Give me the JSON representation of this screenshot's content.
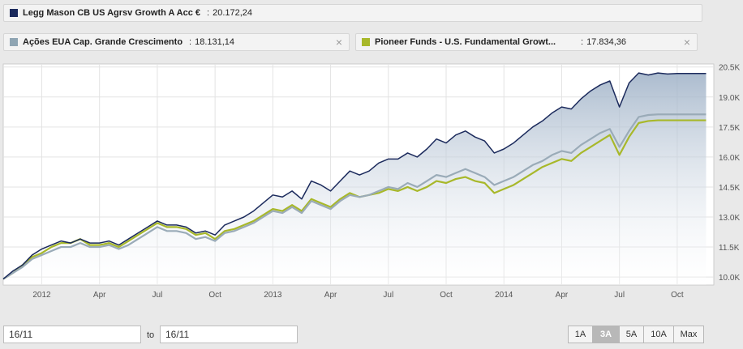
{
  "legend": [
    {
      "name": "Legg Mason CB US Agrsv Growth A Acc €",
      "value": "20.172,24",
      "color": "#1b2a5c",
      "closable": false
    },
    {
      "name": "Ações EUA Cap. Grande Crescimento",
      "value": "18.131,14",
      "color": "#8fa5b3",
      "closable": true
    },
    {
      "name": "Pioneer Funds - U.S. Fundamental Growt...",
      "value": "17.834,36",
      "color": "#a8b82a",
      "closable": true
    }
  ],
  "close_icon": "×",
  "separator": ":",
  "date_from": "16/11",
  "date_to": "16/11",
  "to_label": "to",
  "range_buttons": [
    "1A",
    "3A",
    "5A",
    "10A",
    "Max"
  ],
  "range_active": "3A",
  "chart_data": {
    "type": "line",
    "x_ticks": [
      {
        "label": "2012",
        "m": 2
      },
      {
        "label": "Apr",
        "m": 5
      },
      {
        "label": "Jul",
        "m": 8
      },
      {
        "label": "Oct",
        "m": 11
      },
      {
        "label": "2013",
        "m": 14
      },
      {
        "label": "Apr",
        "m": 17
      },
      {
        "label": "Jul",
        "m": 20
      },
      {
        "label": "Oct",
        "m": 23
      },
      {
        "label": "2014",
        "m": 26
      },
      {
        "label": "Apr",
        "m": 29
      },
      {
        "label": "Jul",
        "m": 32
      },
      {
        "label": "Oct",
        "m": 35
      }
    ],
    "x_range": [
      0,
      36.9
    ],
    "y_ticks": [
      "10.0K",
      "11.5K",
      "13.0K",
      "14.5K",
      "16.0K",
      "17.5K",
      "19.0K",
      "20.5K"
    ],
    "y_tick_values": [
      10000,
      11500,
      13000,
      14500,
      16000,
      17500,
      19000,
      20500
    ],
    "ylim": [
      9600,
      20650
    ],
    "series": [
      {
        "name": "Legg Mason CB US Agrsv Growth A Acc €",
        "color": "#1b2a5c",
        "fill": true,
        "x": [
          0,
          0.5,
          1,
          1.5,
          2,
          2.5,
          3,
          3.5,
          4,
          4.5,
          5,
          5.5,
          6,
          6.5,
          7,
          7.5,
          8,
          8.5,
          9,
          9.5,
          10,
          10.5,
          11,
          11.5,
          12,
          12.5,
          13,
          13.5,
          14,
          14.5,
          15,
          15.5,
          16,
          16.5,
          17,
          17.5,
          18,
          18.5,
          19,
          19.5,
          20,
          20.5,
          21,
          21.5,
          22,
          22.5,
          23,
          23.5,
          24,
          24.5,
          25,
          25.5,
          26,
          26.5,
          27,
          27.5,
          28,
          28.5,
          29,
          29.5,
          30,
          30.5,
          31,
          31.5,
          32,
          32.5,
          33,
          33.5,
          34,
          34.5,
          35,
          35.5,
          36,
          36.5
        ],
        "values": [
          9900,
          10300,
          10600,
          11100,
          11400,
          11600,
          11800,
          11700,
          11900,
          11700,
          11700,
          11800,
          11600,
          11900,
          12200,
          12500,
          12800,
          12600,
          12600,
          12500,
          12200,
          12300,
          12100,
          12600,
          12800,
          13000,
          13300,
          13700,
          14100,
          14000,
          14300,
          13900,
          14800,
          14600,
          14300,
          14800,
          15300,
          15100,
          15300,
          15700,
          15900,
          15900,
          16200,
          16000,
          16400,
          16900,
          16700,
          17100,
          17300,
          17000,
          16800,
          16200,
          16400,
          16700,
          17100,
          17500,
          17800,
          18200,
          18500,
          18400,
          18900,
          19300,
          19600,
          19800,
          18500,
          19700,
          20200,
          20100,
          20200,
          20150,
          20172,
          20172,
          20172,
          20172
        ]
      },
      {
        "name": "Ações EUA Cap. Grande Crescimento",
        "color": "#9aabb8",
        "fill": false,
        "x": [
          0,
          0.5,
          1,
          1.5,
          2,
          2.5,
          3,
          3.5,
          4,
          4.5,
          5,
          5.5,
          6,
          6.5,
          7,
          7.5,
          8,
          8.5,
          9,
          9.5,
          10,
          10.5,
          11,
          11.5,
          12,
          12.5,
          13,
          13.5,
          14,
          14.5,
          15,
          15.5,
          16,
          16.5,
          17,
          17.5,
          18,
          18.5,
          19,
          19.5,
          20,
          20.5,
          21,
          21.5,
          22,
          22.5,
          23,
          23.5,
          24,
          24.5,
          25,
          25.5,
          26,
          26.5,
          27,
          27.5,
          28,
          28.5,
          29,
          29.5,
          30,
          30.5,
          31,
          31.5,
          32,
          32.5,
          33,
          33.5,
          34,
          34.5,
          35,
          35.5,
          36,
          36.5
        ],
        "values": [
          9900,
          10200,
          10500,
          10900,
          11100,
          11300,
          11500,
          11500,
          11700,
          11500,
          11500,
          11600,
          11400,
          11600,
          11900,
          12200,
          12500,
          12300,
          12300,
          12200,
          11900,
          12000,
          11800,
          12200,
          12300,
          12500,
          12700,
          13000,
          13300,
          13200,
          13500,
          13200,
          13800,
          13600,
          13400,
          13800,
          14100,
          14000,
          14100,
          14300,
          14500,
          14400,
          14700,
          14500,
          14800,
          15100,
          15000,
          15200,
          15400,
          15200,
          15000,
          14600,
          14800,
          15000,
          15300,
          15600,
          15800,
          16100,
          16300,
          16200,
          16600,
          16900,
          17200,
          17400,
          16500,
          17300,
          18000,
          18100,
          18131,
          18131,
          18131,
          18131,
          18131,
          18131
        ]
      },
      {
        "name": "Pioneer Funds - U.S. Fundamental Growt...",
        "color": "#a8b82a",
        "fill": false,
        "x": [
          0,
          0.5,
          1,
          1.5,
          2,
          2.5,
          3,
          3.5,
          4,
          4.5,
          5,
          5.5,
          6,
          6.5,
          7,
          7.5,
          8,
          8.5,
          9,
          9.5,
          10,
          10.5,
          11,
          11.5,
          12,
          12.5,
          13,
          13.5,
          14,
          14.5,
          15,
          15.5,
          16,
          16.5,
          17,
          17.5,
          18,
          18.5,
          19,
          19.5,
          20,
          20.5,
          21,
          21.5,
          22,
          22.5,
          23,
          23.5,
          24,
          24.5,
          25,
          25.5,
          26,
          26.5,
          27,
          27.5,
          28,
          28.5,
          29,
          29.5,
          30,
          30.5,
          31,
          31.5,
          32,
          32.5,
          33,
          33.5,
          34,
          34.5,
          35,
          35.5,
          36,
          36.5
        ],
        "values": [
          9900,
          10200,
          10600,
          11000,
          11200,
          11500,
          11700,
          11700,
          11900,
          11600,
          11600,
          11700,
          11500,
          11800,
          12100,
          12400,
          12700,
          12500,
          12500,
          12400,
          12100,
          12200,
          11900,
          12300,
          12400,
          12600,
          12800,
          13100,
          13400,
          13300,
          13600,
          13300,
          13900,
          13700,
          13500,
          13900,
          14200,
          14000,
          14100,
          14200,
          14400,
          14300,
          14500,
          14300,
          14500,
          14800,
          14700,
          14900,
          15000,
          14800,
          14700,
          14200,
          14400,
          14600,
          14900,
          15200,
          15500,
          15700,
          15900,
          15800,
          16200,
          16500,
          16800,
          17100,
          16100,
          17000,
          17700,
          17800,
          17834,
          17834,
          17834,
          17834,
          17834,
          17834
        ]
      }
    ]
  }
}
